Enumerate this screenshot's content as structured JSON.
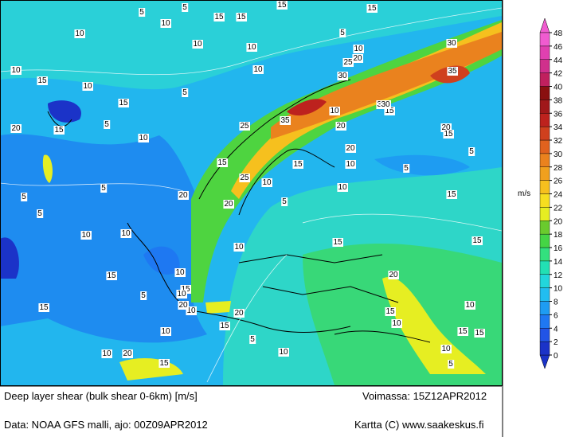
{
  "map": {
    "contour_labels": [
      "5",
      "15",
      "15",
      "15",
      "5",
      "15",
      "10",
      "10",
      "10",
      "5",
      "10",
      "10",
      "30",
      "25",
      "20",
      "35",
      "10",
      "10",
      "15",
      "15",
      "30",
      "10",
      "5",
      "10",
      "15",
      "35",
      "30",
      "30",
      "25",
      "20",
      "20",
      "15",
      "20",
      "15",
      "5",
      "10",
      "20",
      "15",
      "5",
      "25",
      "10",
      "15",
      "10",
      "10",
      "5",
      "20",
      "5",
      "15",
      "20",
      "15",
      "5",
      "5",
      "10",
      "10",
      "5",
      "10",
      "10",
      "15",
      "15",
      "20",
      "15",
      "15",
      "5",
      "10",
      "10",
      "15",
      "10",
      "20",
      "15",
      "10",
      "15",
      "5",
      "10",
      "20",
      "10",
      "15",
      "20",
      "15",
      "10",
      "5",
      "10"
    ]
  },
  "colorbar": {
    "unit": "m/s",
    "ticks": [
      0,
      2,
      4,
      6,
      8,
      10,
      12,
      14,
      16,
      18,
      20,
      22,
      24,
      26,
      28,
      30,
      32,
      34,
      36,
      38,
      40,
      42,
      44,
      46,
      48
    ],
    "colors": [
      "#1b33c8",
      "#2254e6",
      "#1f78f2",
      "#1e9cf2",
      "#22bdf0",
      "#22d6dc",
      "#22e0b4",
      "#33e07e",
      "#45d545",
      "#6acb2e",
      "#e6ee22",
      "#f6de20",
      "#f6c01e",
      "#f0a01e",
      "#ea821e",
      "#e0621e",
      "#cf401e",
      "#bd221e",
      "#a0181a",
      "#8a1010",
      "#c0205e",
      "#d0308c",
      "#e040b0",
      "#f05cd0"
    ]
  },
  "footer": {
    "title": "Deep layer shear (bulk shear 0-6km) [m/s]",
    "valid": "Voimassa: 15Z12APR2012",
    "source": "Data: NOAA GFS malli, ajo: 00Z09APR2012",
    "credit": "Kartta (C) www.saakeskus.fi"
  }
}
